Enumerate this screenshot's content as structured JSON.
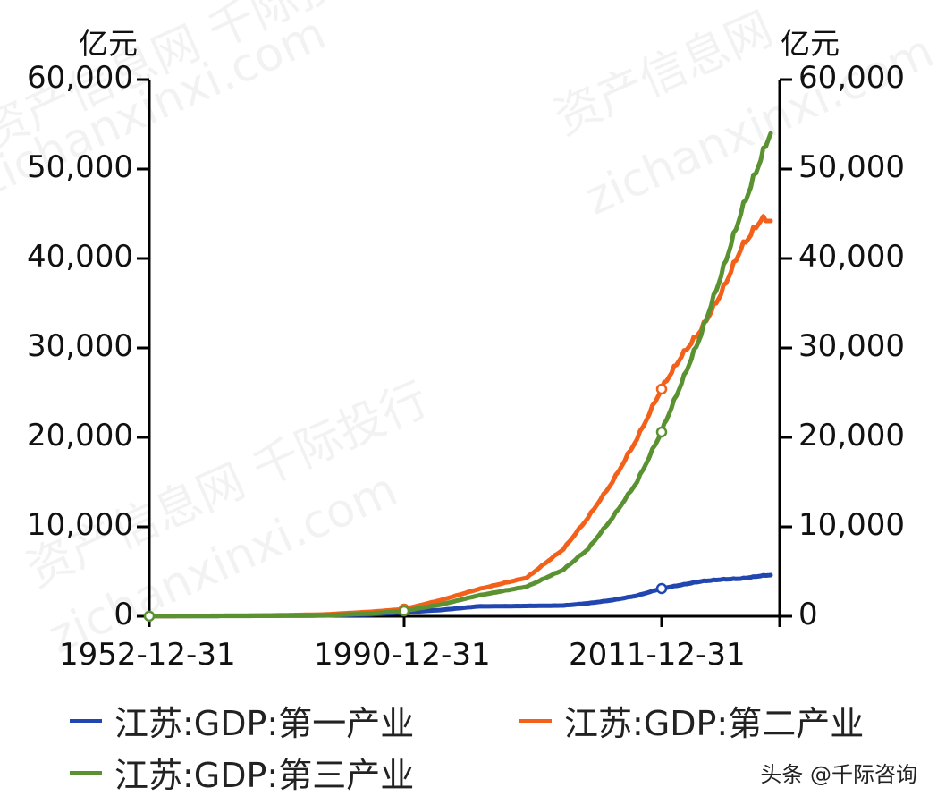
{
  "chart_data": {
    "type": "line",
    "title": "",
    "xlabel": "",
    "ylabel": "亿元",
    "y2label": "亿元",
    "ylim": [
      0,
      60000
    ],
    "y_ticks": [
      0,
      10000,
      20000,
      30000,
      40000,
      50000,
      60000
    ],
    "y_tick_labels": [
      "0",
      "10,000",
      "20,000",
      "30,000",
      "40,000",
      "50,000",
      "60,000"
    ],
    "x_tick_labels": [
      "1952-12-31",
      "1990-12-31",
      "2011-12-31"
    ],
    "x": [
      1952,
      1960,
      1970,
      1978,
      1985,
      1990,
      1993,
      1996,
      2000,
      2003,
      2005,
      2007,
      2009,
      2011,
      2013,
      2015,
      2017,
      2019,
      2021,
      2022
    ],
    "series": [
      {
        "name": "江苏:GDP:第一产业",
        "color": "#2146b0",
        "values": [
          30,
          40,
          60,
          90,
          200,
          450,
          700,
          1100,
          1150,
          1200,
          1450,
          1800,
          2300,
          3100,
          3500,
          3900,
          4100,
          4200,
          4500,
          4600
        ]
      },
      {
        "name": "江苏:GDP:第二产业",
        "color": "#f2601a",
        "values": [
          20,
          50,
          100,
          200,
          500,
          800,
          1800,
          3000,
          4300,
          7500,
          11000,
          15000,
          19800,
          25400,
          29000,
          32000,
          36000,
          41000,
          44200,
          44200
        ]
      },
      {
        "name": "江苏:GDP:第三产业",
        "color": "#5a9232",
        "values": [
          15,
          30,
          50,
          100,
          300,
          600,
          1300,
          2300,
          3300,
          5200,
          7500,
          11000,
          15000,
          20600,
          26000,
          31500,
          38000,
          45000,
          51000,
          54000
        ]
      }
    ],
    "markers": [
      {
        "series": 0,
        "x": 2011,
        "value": 3100
      },
      {
        "series": 1,
        "x": 2011,
        "value": 25400
      },
      {
        "series": 2,
        "x": 2011,
        "value": 20600
      },
      {
        "series": 1,
        "x": 1990,
        "value": 800
      },
      {
        "series": 2,
        "x": 1990,
        "value": 600
      },
      {
        "series": 2,
        "x": 1952,
        "value": 15
      }
    ],
    "legend_position": "bottom",
    "grid": false
  },
  "axes": {
    "left_unit": "亿元",
    "right_unit": "亿元",
    "y_tick_labels": [
      "0",
      "10,000",
      "20,000",
      "30,000",
      "40,000",
      "50,000",
      "60,000"
    ],
    "x_tick_labels": [
      "1952-12-31",
      "1990-12-31",
      "2011-12-31"
    ]
  },
  "legend": {
    "items": [
      {
        "label": "江苏:GDP:第一产业",
        "color": "#2146b0"
      },
      {
        "label": "江苏:GDP:第二产业",
        "color": "#f2601a"
      },
      {
        "label": "江苏:GDP:第三产业",
        "color": "#5a9232"
      }
    ]
  },
  "credit": "头条 @千际咨询",
  "watermarks": [
    "资产信息网 千际投行",
    "zichanxinxi.com",
    "资产信息网 千际投行",
    "zichanxinxi.com",
    "资产信息网",
    "zichanxinxi.com"
  ]
}
